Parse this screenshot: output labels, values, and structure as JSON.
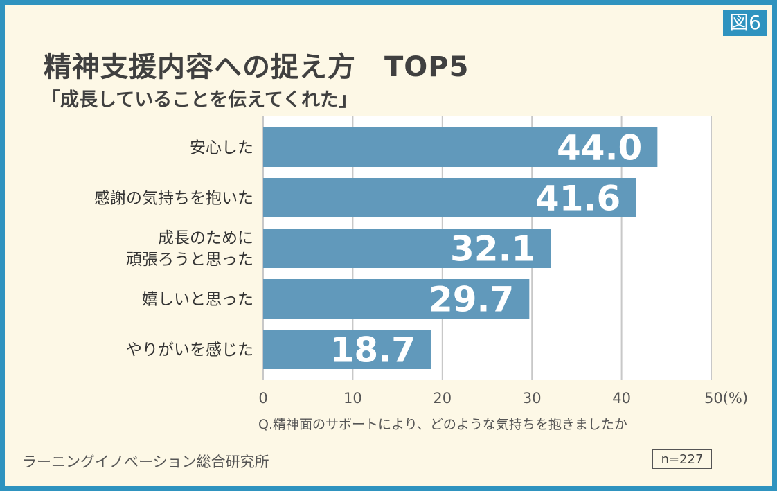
{
  "figure_tag": "図6",
  "title": "精神支援内容への捉え方　TOP5",
  "subtitle": "「成長していることを伝えてくれた」",
  "question": "Q.精神面のサポートにより、どのような気持ちを抱きましたか",
  "source": "ラーニングイノベーション総合研究所",
  "sample_size": "n=227",
  "colors": {
    "frame": "#2f93bf",
    "background": "#fdf8e6",
    "bar": "#6199bb",
    "plot_bg": "#ffffff",
    "grid": "#c8c8c8"
  },
  "chart_data": {
    "type": "bar",
    "orientation": "horizontal",
    "categories": [
      "安心した",
      "感謝の気持ちを抱いた",
      "成長のために\n頑張ろうと思った",
      "嬉しいと思った",
      "やりがいを感じた"
    ],
    "values": [
      44.0,
      41.6,
      32.1,
      29.7,
      18.7
    ],
    "value_labels": [
      "44.0",
      "41.6",
      "32.1",
      "29.7",
      "18.7"
    ],
    "xlim": [
      0,
      50
    ],
    "ticks": [
      0,
      10,
      20,
      30,
      40,
      50
    ],
    "tick_labels": [
      "0",
      "10",
      "20",
      "30",
      "40",
      "50(%)"
    ],
    "grid": true
  }
}
